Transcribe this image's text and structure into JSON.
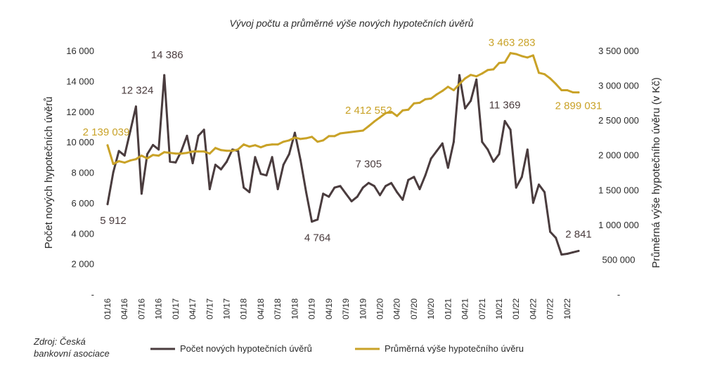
{
  "chart_data": {
    "type": "line",
    "title": "Vývoj počtu a průměrné výše nových hypotečních úvěrů",
    "source": [
      "Zdroj: Česká",
      "bankovní asociace"
    ],
    "x_tick_labels": [
      "01/16",
      "04/16",
      "07/16",
      "10/16",
      "01/17",
      "04/17",
      "07/17",
      "10/17",
      "01/18",
      "04/18",
      "07/18",
      "10/18",
      "01/19",
      "04/19",
      "07/19",
      "10/19",
      "01/20",
      "04/20",
      "07/20",
      "10/20",
      "01/21",
      "04/21",
      "07/21",
      "10/21",
      "01/22",
      "04/22",
      "07/22",
      "10/22"
    ],
    "y_left": {
      "label": "Počet nových hypotečních úvěrů",
      "lim": [
        0,
        16000
      ],
      "ticks": [
        0,
        2000,
        4000,
        6000,
        8000,
        10000,
        12000,
        14000,
        16000
      ],
      "tick_labels": [
        "-",
        "2 000",
        "4 000",
        "6 000",
        "8 000",
        "10 000",
        "12 000",
        "14 000",
        "16 000"
      ]
    },
    "y_right": {
      "label": "Průměrná výše hypotečního úvěru (v Kč)",
      "lim": [
        0,
        3500000
      ],
      "ticks": [
        0,
        500000,
        1000000,
        1500000,
        2000000,
        2500000,
        3000000,
        3500000
      ],
      "tick_labels": [
        "-",
        "500 000",
        "1 000 000",
        "1 500 000",
        "2 000 000",
        "2 500 000",
        "3 000 000",
        "3 500 000"
      ]
    },
    "series": [
      {
        "name": "Počet nových hypotečních úvěrů",
        "axis": "left",
        "color": "#4a3c3e",
        "values": [
          5912,
          8000,
          9400,
          9100,
          10700,
          12324,
          6600,
          9200,
          9800,
          9500,
          14386,
          8700,
          8650,
          9400,
          10400,
          8600,
          10400,
          10800,
          6900,
          8500,
          8200,
          8700,
          9500,
          9400,
          7000,
          6700,
          9000,
          7900,
          7800,
          9000,
          6900,
          8500,
          9200,
          10600,
          8800,
          6700,
          4764,
          4900,
          6600,
          6400,
          7000,
          7100,
          6600,
          6100,
          6400,
          7000,
          7305,
          7100,
          6500,
          7100,
          7300,
          6700,
          6200,
          7500,
          7700,
          6900,
          7800,
          8900,
          9400,
          9900,
          8300,
          10000,
          14386,
          12200,
          12700,
          14100,
          10000,
          9500,
          8700,
          9200,
          11369,
          10800,
          7000,
          7700,
          9500,
          6000,
          7200,
          6700,
          4100,
          3700,
          2600,
          2650,
          2750,
          2841
        ],
        "data_labels": [
          {
            "index": 0,
            "text": "5 912"
          },
          {
            "index": 5,
            "text": "12 324"
          },
          {
            "index": 10,
            "text": "14 386"
          },
          {
            "index": 36,
            "text": "4 764"
          },
          {
            "index": 46,
            "text": "7 305"
          },
          {
            "index": 70,
            "text": "11 369"
          },
          {
            "index": 83,
            "text": "2 841"
          }
        ]
      },
      {
        "name": "Průměrná výše hypotečního úvěru",
        "axis": "right",
        "color": "#c9a227",
        "values": [
          2139039,
          1870000,
          1910000,
          1890000,
          1920000,
          1940000,
          1990000,
          1950000,
          2000000,
          1990000,
          2040000,
          2030000,
          2020000,
          2020000,
          2030000,
          2050000,
          2050000,
          2050000,
          2020000,
          2100000,
          2070000,
          2060000,
          2060000,
          2080000,
          2150000,
          2120000,
          2140000,
          2110000,
          2140000,
          2150000,
          2150000,
          2190000,
          2210000,
          2250000,
          2230000,
          2240000,
          2260000,
          2190000,
          2210000,
          2270000,
          2270000,
          2310000,
          2320000,
          2330000,
          2340000,
          2350000,
          2412552,
          2480000,
          2540000,
          2600000,
          2620000,
          2560000,
          2640000,
          2650000,
          2740000,
          2750000,
          2800000,
          2810000,
          2870000,
          2920000,
          2980000,
          2930000,
          3020000,
          3100000,
          3150000,
          3130000,
          3170000,
          3220000,
          3230000,
          3320000,
          3330000,
          3463283,
          3450000,
          3420000,
          3400000,
          3430000,
          3180000,
          3160000,
          3100000,
          3020000,
          2930000,
          2930000,
          2900000,
          2899031
        ],
        "data_labels": [
          {
            "index": 0,
            "text": "2 139 039"
          },
          {
            "index": 46,
            "text": "2 412 552"
          },
          {
            "index": 71,
            "text": "3 463 283"
          },
          {
            "index": 83,
            "text": "2 899 031"
          }
        ]
      }
    ],
    "legend": {
      "position": "bottom",
      "entries": [
        "Počet nových hypotečních úvěrů",
        "Průměrná výše hypotečního úvěru"
      ]
    },
    "grid": false
  }
}
